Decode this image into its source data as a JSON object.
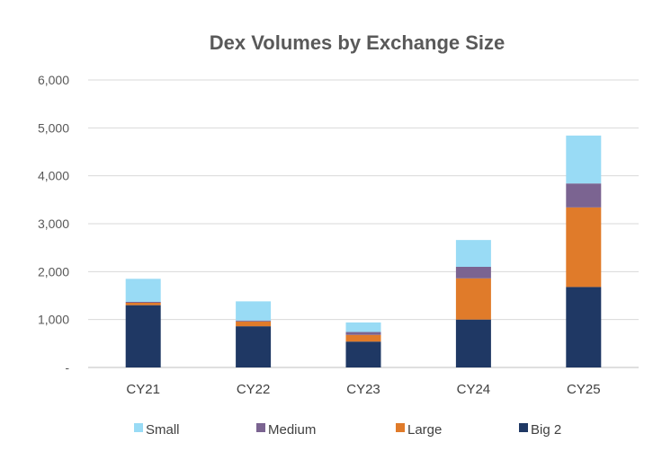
{
  "chart_data": {
    "type": "bar",
    "stacked": true,
    "title": "Dex Volumes by Exchange Size",
    "xlabel": "",
    "ylabel": "",
    "categories": [
      "CY21",
      "CY22",
      "CY23",
      "CY24",
      "CY25"
    ],
    "ylim": [
      0,
      6000
    ],
    "yticks": [
      0,
      1000,
      2000,
      3000,
      4000,
      5000,
      6000
    ],
    "ytick_labels": [
      "-",
      "1,000",
      "2,000",
      "3,000",
      "4,000",
      "5,000",
      "6,000"
    ],
    "grid": true,
    "legend_position": "bottom",
    "series": [
      {
        "name": "Big 2",
        "color": "#1f3864",
        "values": [
          1300,
          860,
          540,
          1000,
          1680
        ]
      },
      {
        "name": "Large",
        "color": "#e07b2a",
        "values": [
          50,
          100,
          140,
          860,
          1660
        ]
      },
      {
        "name": "Medium",
        "color": "#7b6491",
        "values": [
          20,
          20,
          60,
          240,
          500
        ]
      },
      {
        "name": "Small",
        "color": "#99dbf5",
        "values": [
          480,
          400,
          200,
          560,
          1000
        ]
      }
    ],
    "legend_order": [
      "Small",
      "Medium",
      "Large",
      "Big 2"
    ]
  }
}
